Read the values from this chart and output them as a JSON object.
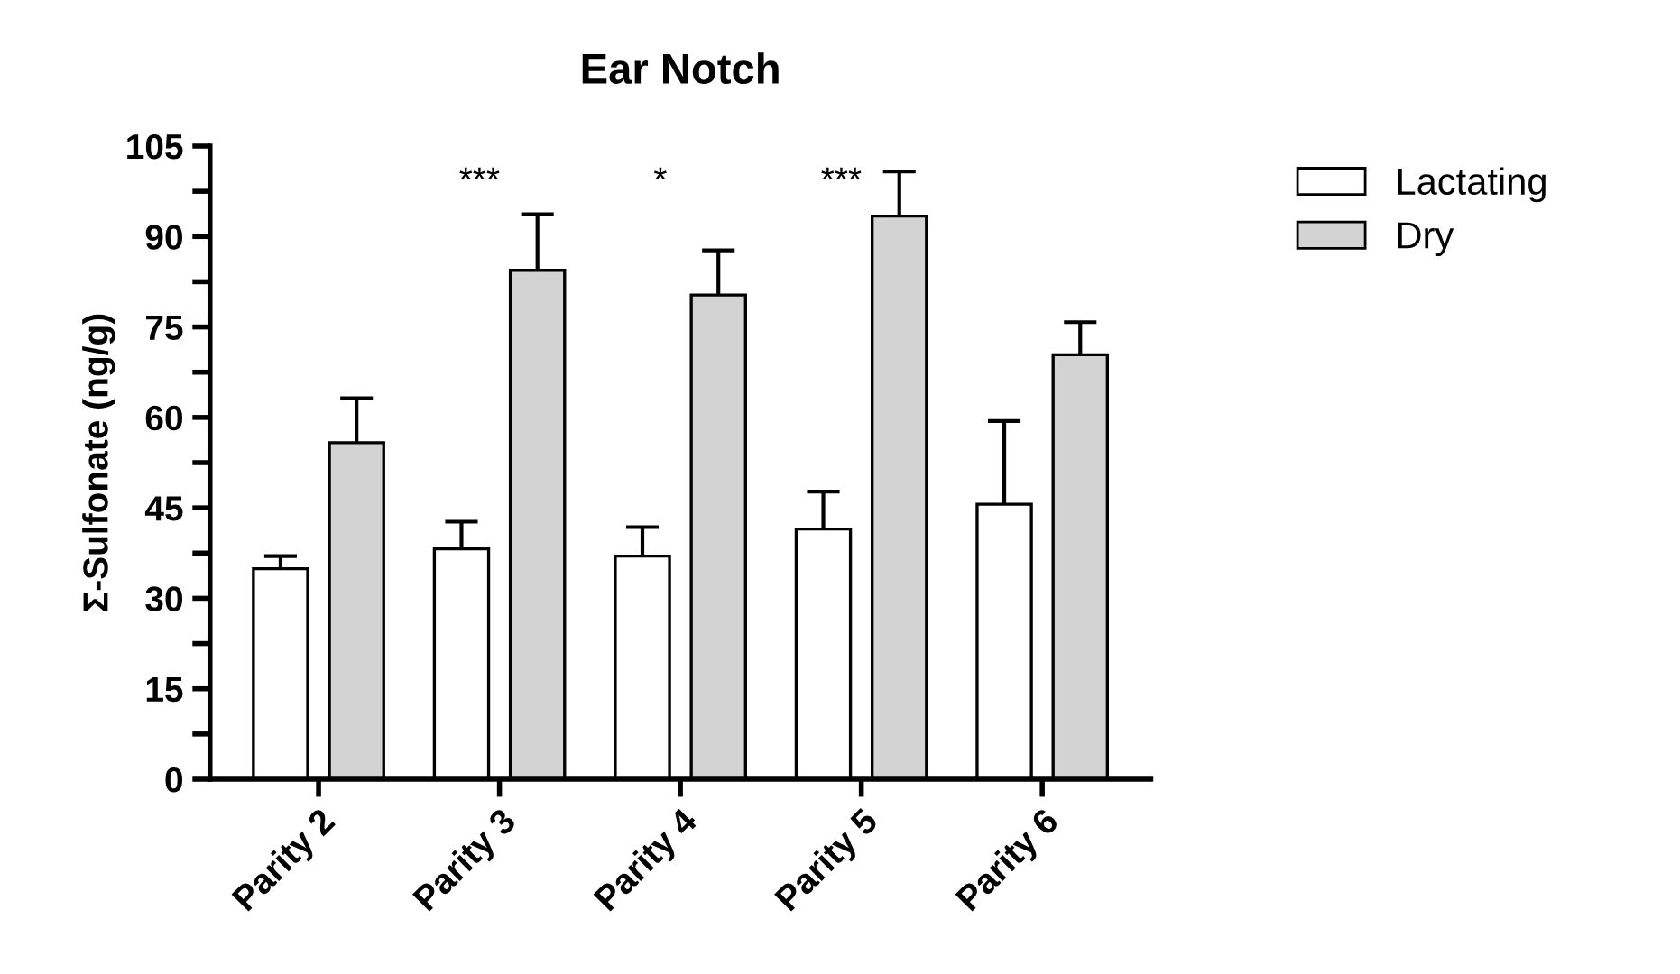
{
  "chart_data": {
    "type": "bar",
    "title": "Ear Notch",
    "ylabel": "Σ-Sulfonate (ng/g)",
    "categories": [
      "Parity 2",
      "Parity 3",
      "Parity 4",
      "Parity 5",
      "Parity 6"
    ],
    "series": [
      {
        "name": "Lactating",
        "color": "#ffffff",
        "values": [
          34.9,
          38.2,
          37,
          41.5,
          45.6
        ],
        "errors": [
          [
            34.9,
            37
          ],
          [
            38.2,
            42.7
          ],
          [
            37,
            41.8
          ],
          [
            41.5,
            47.7
          ],
          [
            45.6,
            59.4
          ]
        ]
      },
      {
        "name": "Dry",
        "color": "#d3d3d3",
        "values": [
          55.8,
          84.4,
          80.3,
          93.4,
          70.4
        ],
        "errors": [
          [
            55.8,
            63.2
          ],
          [
            84.4,
            93.7
          ],
          [
            80.3,
            87.7
          ],
          [
            93.4,
            100.8
          ],
          [
            70.4,
            75.8
          ]
        ]
      }
    ],
    "ylim": [
      0,
      105
    ],
    "yticks": [
      0,
      {
        "value": 7.5,
        "label": null
      },
      15,
      {
        "value": 22.5,
        "label": null
      },
      30,
      {
        "value": 37.5,
        "label": null
      },
      45,
      {
        "value": 52.5,
        "label": null
      },
      60,
      {
        "value": 67.5,
        "label": null
      },
      75,
      {
        "value": 82.5,
        "label": null
      },
      90,
      {
        "value": 97.5,
        "label": null
      },
      105
    ],
    "annotations": [
      "***",
      "*",
      "***"
    ],
    "legend": "top right",
    "grid": false
  }
}
